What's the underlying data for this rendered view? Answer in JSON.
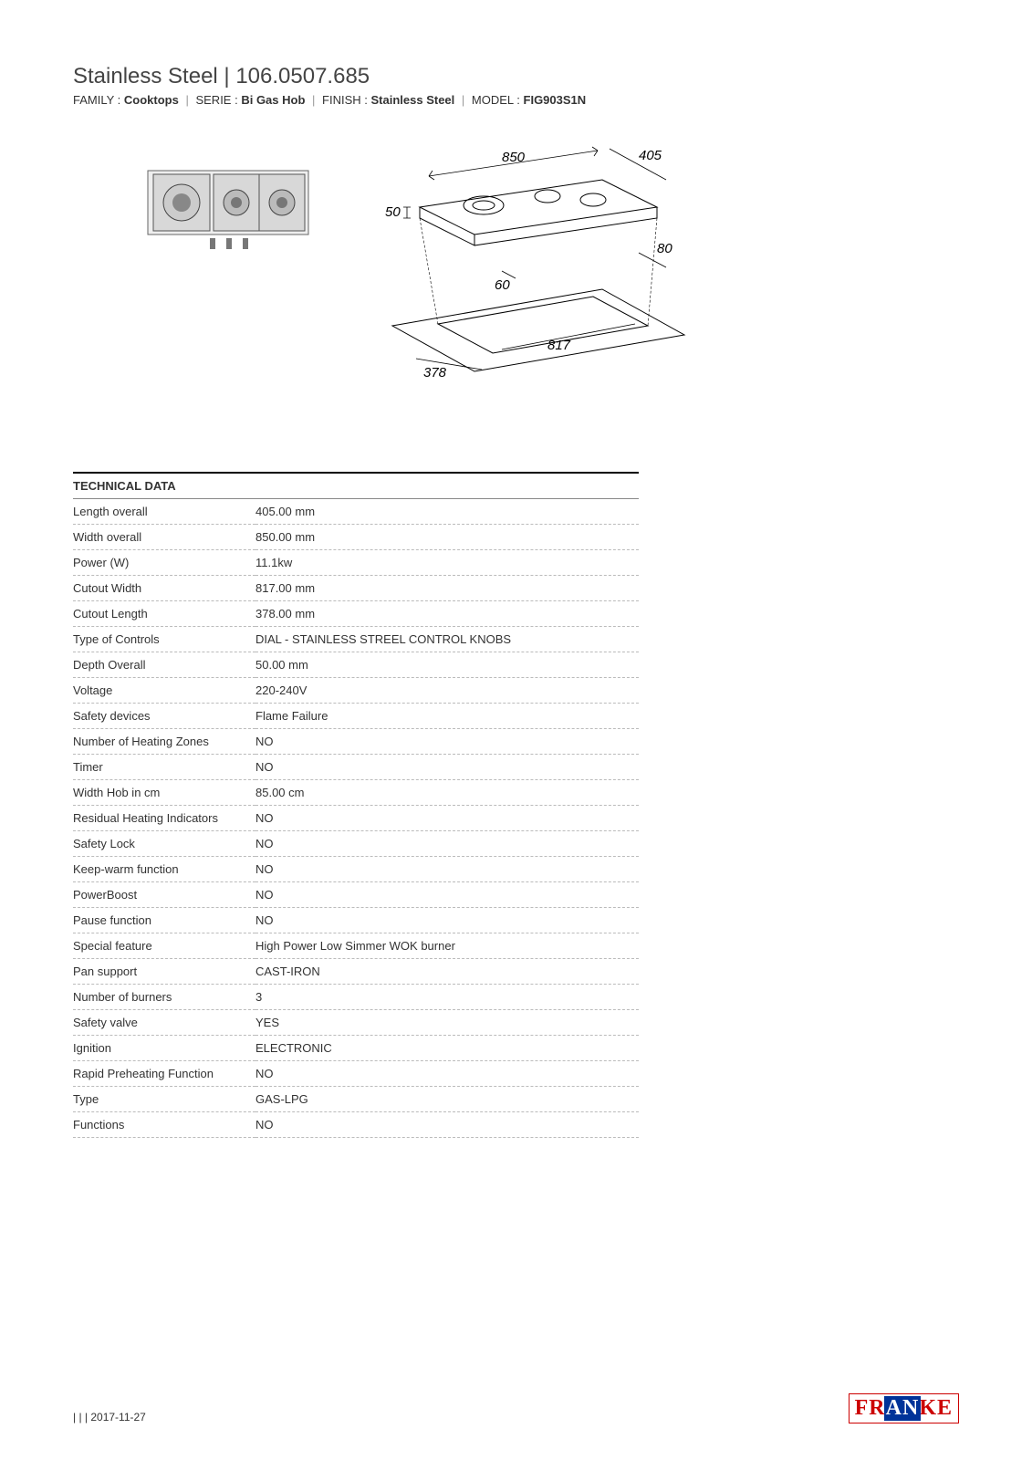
{
  "header": {
    "title_line": "Stainless Steel | 106.0507.685",
    "family_label": "FAMILY : ",
    "family_value": "Cooktops",
    "serie_label": "SERIE : ",
    "serie_value": "Bi Gas Hob",
    "finish_label": "FINISH : ",
    "finish_value": "Stainless Steel",
    "model_label": "MODEL : ",
    "model_value": "FIG903S1N"
  },
  "diagram": {
    "dims": {
      "top_width": "850",
      "top_depth": "405",
      "height": "50",
      "rear_gap": "60",
      "side_gap": "80",
      "cutout_width": "817",
      "cutout_depth": "378"
    },
    "stroke": "#000000",
    "font_size_pt": 12
  },
  "section_title": "TECHNICAL DATA",
  "specs": [
    {
      "label": "Length overall",
      "value": "405.00 mm"
    },
    {
      "label": "Width overall",
      "value": "850.00 mm"
    },
    {
      "label": "Power (W)",
      "value": "11.1kw"
    },
    {
      "label": "Cutout Width",
      "value": "817.00 mm"
    },
    {
      "label": "Cutout Length",
      "value": "378.00 mm"
    },
    {
      "label": "Type of Controls",
      "value": "DIAL - STAINLESS STREEL CONTROL KNOBS"
    },
    {
      "label": "Depth Overall",
      "value": "50.00 mm"
    },
    {
      "label": "Voltage",
      "value": "220-240V"
    },
    {
      "label": "Safety devices",
      "value": "Flame Failure"
    },
    {
      "label": "Number of Heating Zones",
      "value": "NO"
    },
    {
      "label": "Timer",
      "value": "NO"
    },
    {
      "label": "Width Hob in cm",
      "value": "85.00 cm"
    },
    {
      "label": "Residual Heating Indicators",
      "value": "NO"
    },
    {
      "label": "Safety Lock",
      "value": "NO"
    },
    {
      "label": "Keep-warm function",
      "value": "NO"
    },
    {
      "label": "PowerBoost",
      "value": "NO"
    },
    {
      "label": "Pause function",
      "value": "NO"
    },
    {
      "label": "Special feature",
      "value": "High Power Low Simmer WOK burner"
    },
    {
      "label": "Pan support",
      "value": "CAST-IRON"
    },
    {
      "label": "Number of burners",
      "value": "3"
    },
    {
      "label": "Safety valve",
      "value": "YES"
    },
    {
      "label": "Ignition",
      "value": "ELECTRONIC"
    },
    {
      "label": "Rapid Preheating Function",
      "value": "NO"
    },
    {
      "label": "Type",
      "value": "GAS-LPG"
    },
    {
      "label": "Functions",
      "value": "NO"
    }
  ],
  "footer": {
    "date": "| | | 2017-11-27",
    "logo_text": "FRANKE",
    "logo_color": "#cc0000",
    "logo_blue": "#003399"
  },
  "colors": {
    "background": "#ffffff",
    "text": "#333333",
    "dashed_border": "#bbbbbb",
    "solid_border": "#888888",
    "hr": "#000000"
  }
}
